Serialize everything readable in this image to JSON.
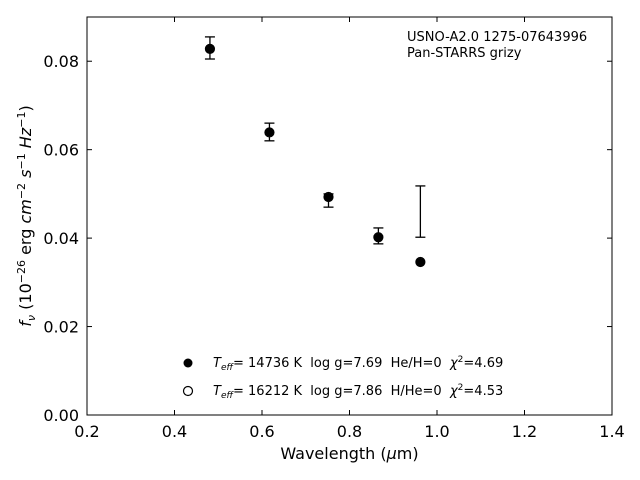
{
  "chart_data": {
    "type": "scatter",
    "xlabel": "Wavelength (μm)",
    "ylabel": "fν (10⁻²⁶ erg cm⁻² s⁻¹ Hz⁻¹)",
    "xlim": [
      0.2,
      1.4
    ],
    "ylim": [
      0.0,
      0.09
    ],
    "xticks": [
      0.2,
      0.4,
      0.6,
      0.8,
      1.0,
      1.2,
      1.4
    ],
    "xtick_labels": [
      "0.2",
      "0.4",
      "0.6",
      "0.8",
      "1.0",
      "1.2",
      "1.4"
    ],
    "yticks": [
      0.0,
      0.02,
      0.04,
      0.06,
      0.08
    ],
    "ytick_labels": [
      "0.00",
      "0.02",
      "0.04",
      "0.06",
      "0.08"
    ],
    "annotation": {
      "line1": "USNO-A2.0 1275-07643996",
      "line2": "Pan-STARRS grizy"
    },
    "observed": {
      "x": [
        0.481,
        0.617,
        0.752,
        0.866,
        0.962
      ],
      "y": [
        0.083,
        0.064,
        0.0485,
        0.0405,
        0.046
      ],
      "yerr": [
        0.0025,
        0.002,
        0.0015,
        0.0018,
        0.0058
      ]
    },
    "series": [
      {
        "marker": "filled-circle",
        "x": [
          0.481,
          0.617,
          0.752,
          0.866,
          0.962
        ],
        "y": [
          0.0828,
          0.064,
          0.0492,
          0.0401,
          0.0345
        ]
      },
      {
        "marker": "open-circle",
        "x": [
          0.481,
          0.617,
          0.752,
          0.866,
          0.962
        ],
        "y": [
          0.0828,
          0.0639,
          0.0493,
          0.0402,
          0.0346
        ]
      }
    ],
    "legend": {
      "placement": "bottom-center",
      "entries": [
        {
          "marker": "filled-circle",
          "teff_symbol": "T",
          "teff_sub": "eff",
          "rest": "= 14736 K  log g=7.69  He/H=0  ",
          "chi_symbol": "χ",
          "chi_sup": "2",
          "chi_value": "=4.69"
        },
        {
          "marker": "open-circle",
          "teff_symbol": "T",
          "teff_sub": "eff",
          "rest": "= 16212 K  log g=7.86  H/He=0  ",
          "chi_symbol": "χ",
          "chi_sup": "2",
          "chi_value": "=4.53"
        }
      ]
    },
    "grid": false
  }
}
